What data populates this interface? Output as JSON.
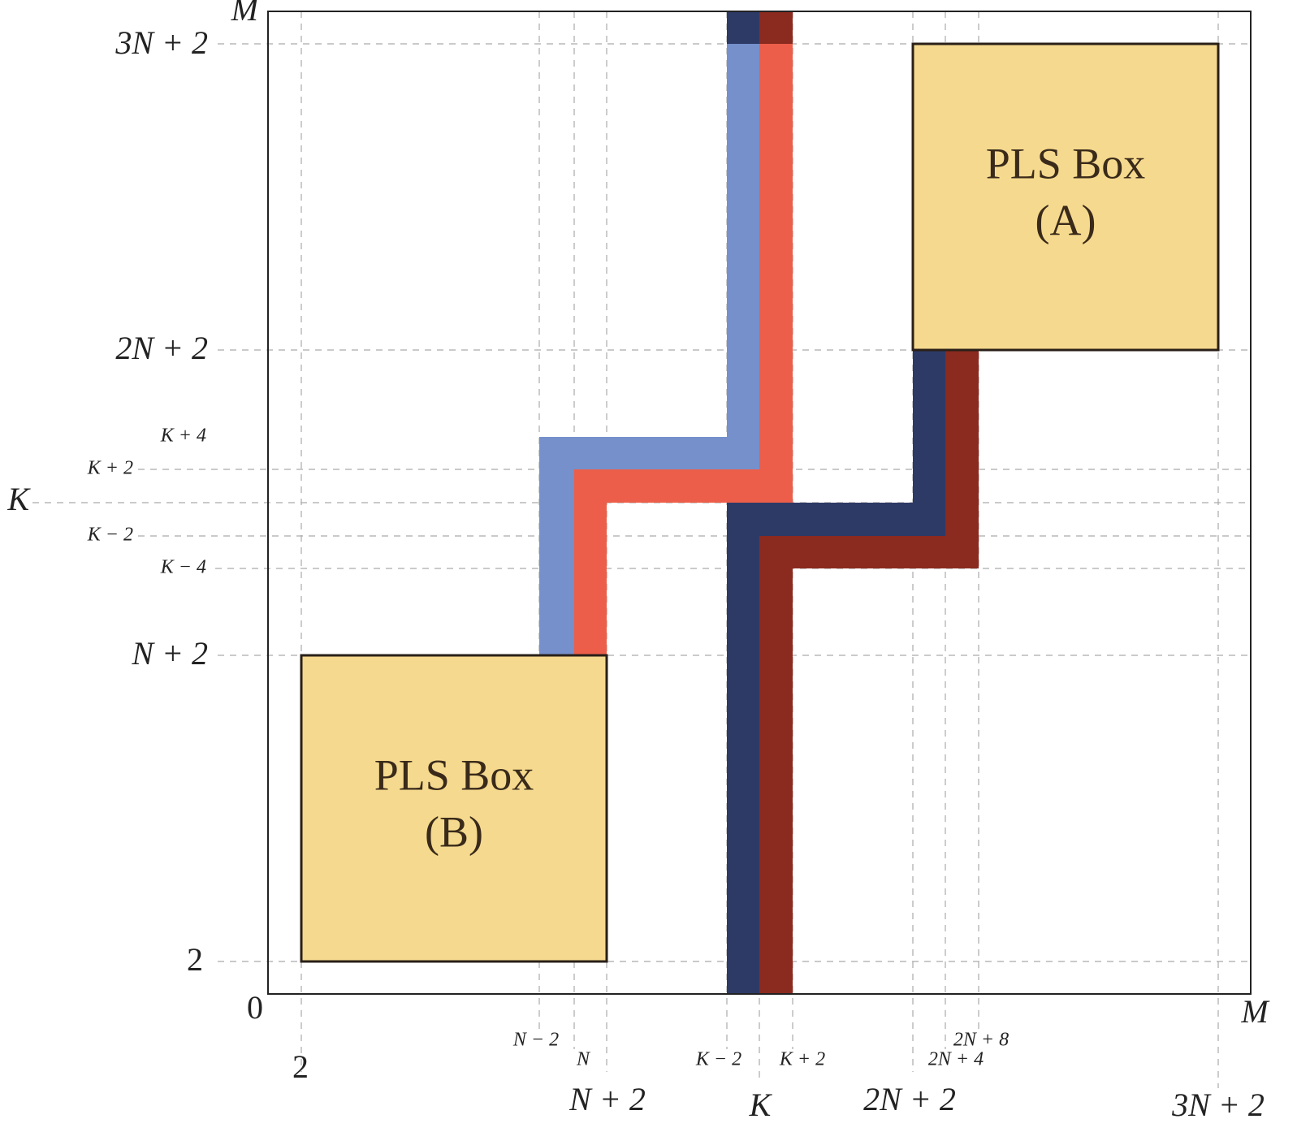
{
  "axes": {
    "y_labels": [
      "M",
      "3N + 2",
      "2N + 2",
      "K + 4",
      "K + 2",
      "K",
      "K − 2",
      "K − 4",
      "N + 2",
      "2",
      "0"
    ],
    "x_labels": [
      "2",
      "N − 2",
      "N",
      "N + 2",
      "K − 2",
      "K",
      "K + 2",
      "2N + 2",
      "2N + 4",
      "2N + 8",
      "3N + 2",
      "M"
    ]
  },
  "boxes": [
    {
      "title": "PLS Box",
      "tag": "(A)"
    },
    {
      "title": "PLS Box",
      "tag": "(B)"
    }
  ]
}
